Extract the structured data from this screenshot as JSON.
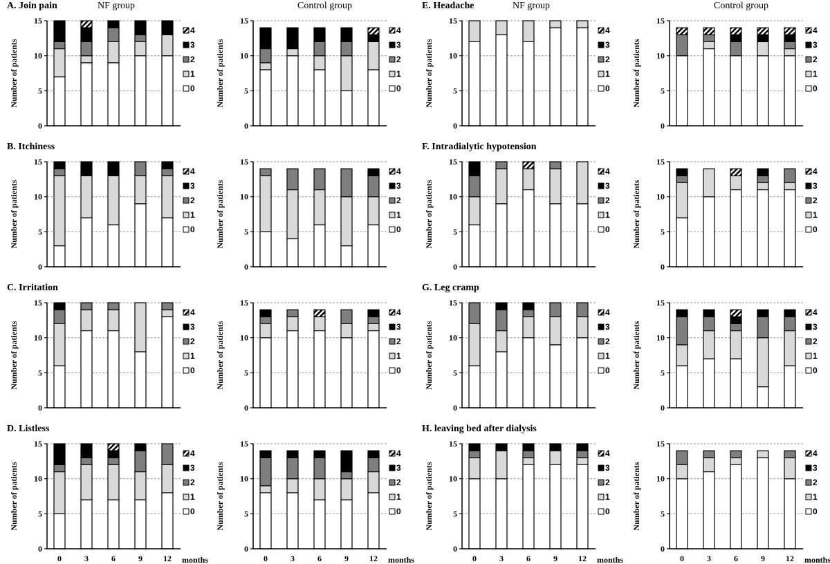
{
  "common": {
    "ylabel": "Number of patients",
    "x_tick_labels": [
      "0",
      "3",
      "6",
      "9",
      "12"
    ],
    "x_unit_label": "months",
    "ylim": [
      0,
      15
    ],
    "y_ticks": [
      "0",
      "5",
      "10",
      "15"
    ],
    "legend": [
      "4",
      "3",
      "2",
      "1",
      "0"
    ],
    "group_labels": {
      "nf": "NF group",
      "control": "Control group"
    },
    "level_colors": {
      "0": "#ffffff",
      "1": "#d9d9d9",
      "2": "#7f7f7f",
      "3": "#000000",
      "4": "hatched"
    },
    "grid": "horizontal dashed"
  },
  "chart_data": [
    {
      "type": "bar",
      "stacked": true,
      "panel": "A",
      "title": "A. Join pain",
      "group": "NF group",
      "categories": [
        "0",
        "3",
        "6",
        "9",
        "12"
      ],
      "series": [
        {
          "name": "0",
          "values": [
            7,
            9,
            9,
            10,
            10
          ]
        },
        {
          "name": "1",
          "values": [
            4,
            1,
            3,
            2,
            3
          ]
        },
        {
          "name": "2",
          "values": [
            1,
            2,
            2,
            1,
            0
          ]
        },
        {
          "name": "3",
          "values": [
            3,
            2,
            1,
            2,
            2
          ]
        },
        {
          "name": "4",
          "values": [
            0,
            1,
            0,
            0,
            0
          ]
        }
      ]
    },
    {
      "type": "bar",
      "stacked": true,
      "panel": "A",
      "title": "",
      "group": "Control group",
      "categories": [
        "0",
        "3",
        "6",
        "9",
        "12"
      ],
      "series": [
        {
          "name": "0",
          "values": [
            8,
            10,
            8,
            5,
            8
          ]
        },
        {
          "name": "1",
          "values": [
            1,
            1,
            2,
            5,
            4
          ]
        },
        {
          "name": "2",
          "values": [
            2,
            0,
            2,
            2,
            0
          ]
        },
        {
          "name": "3",
          "values": [
            3,
            3,
            2,
            2,
            1
          ]
        },
        {
          "name": "4",
          "values": [
            0,
            0,
            0,
            0,
            1
          ]
        }
      ]
    },
    {
      "type": "bar",
      "stacked": true,
      "panel": "E",
      "title": "E. Headache",
      "group": "NF group",
      "categories": [
        "0",
        "3",
        "6",
        "9",
        "12"
      ],
      "series": [
        {
          "name": "0",
          "values": [
            12,
            13,
            12,
            14,
            14
          ]
        },
        {
          "name": "1",
          "values": [
            3,
            2,
            3,
            1,
            1
          ]
        },
        {
          "name": "2",
          "values": [
            0,
            0,
            0,
            0,
            0
          ]
        },
        {
          "name": "3",
          "values": [
            0,
            0,
            0,
            0,
            0
          ]
        },
        {
          "name": "4",
          "values": [
            0,
            0,
            0,
            0,
            0
          ]
        }
      ]
    },
    {
      "type": "bar",
      "stacked": true,
      "panel": "E",
      "title": "",
      "group": "Control group",
      "categories": [
        "0",
        "3",
        "6",
        "9",
        "12"
      ],
      "series": [
        {
          "name": "0",
          "values": [
            10,
            11,
            10,
            10,
            10
          ]
        },
        {
          "name": "1",
          "values": [
            0,
            1,
            0,
            2,
            1
          ]
        },
        {
          "name": "2",
          "values": [
            3,
            1,
            2,
            0,
            1
          ]
        },
        {
          "name": "3",
          "values": [
            0,
            0,
            1,
            1,
            1
          ]
        },
        {
          "name": "4",
          "values": [
            1,
            1,
            1,
            1,
            1
          ]
        }
      ]
    },
    {
      "type": "bar",
      "stacked": true,
      "panel": "B",
      "title": "B. Itchiness",
      "group": "NF group",
      "categories": [
        "0",
        "3",
        "6",
        "9",
        "12"
      ],
      "series": [
        {
          "name": "0",
          "values": [
            3,
            7,
            6,
            9,
            7
          ]
        },
        {
          "name": "1",
          "values": [
            10,
            6,
            7,
            4,
            6
          ]
        },
        {
          "name": "2",
          "values": [
            1,
            0,
            0,
            2,
            1
          ]
        },
        {
          "name": "3",
          "values": [
            1,
            2,
            2,
            0,
            1
          ]
        },
        {
          "name": "4",
          "values": [
            0,
            0,
            0,
            0,
            0
          ]
        }
      ]
    },
    {
      "type": "bar",
      "stacked": true,
      "panel": "B",
      "title": "",
      "group": "Control group",
      "categories": [
        "0",
        "3",
        "6",
        "9",
        "12"
      ],
      "series": [
        {
          "name": "0",
          "values": [
            5,
            4,
            6,
            3,
            6
          ]
        },
        {
          "name": "1",
          "values": [
            8,
            7,
            5,
            7,
            4
          ]
        },
        {
          "name": "2",
          "values": [
            1,
            3,
            3,
            4,
            3
          ]
        },
        {
          "name": "3",
          "values": [
            0,
            0,
            0,
            0,
            1
          ]
        },
        {
          "name": "4",
          "values": [
            0,
            0,
            0,
            0,
            0
          ]
        }
      ]
    },
    {
      "type": "bar",
      "stacked": true,
      "panel": "F",
      "title": "F. Intradialytic hypotension",
      "group": "NF group",
      "categories": [
        "0",
        "3",
        "6",
        "9",
        "12"
      ],
      "series": [
        {
          "name": "0",
          "values": [
            6,
            9,
            11,
            9,
            9
          ]
        },
        {
          "name": "1",
          "values": [
            4,
            5,
            3,
            5,
            6
          ]
        },
        {
          "name": "2",
          "values": [
            3,
            1,
            0,
            1,
            0
          ]
        },
        {
          "name": "3",
          "values": [
            2,
            0,
            0,
            0,
            0
          ]
        },
        {
          "name": "4",
          "values": [
            0,
            0,
            1,
            0,
            0
          ]
        }
      ]
    },
    {
      "type": "bar",
      "stacked": true,
      "panel": "F",
      "title": "",
      "group": "Control group",
      "categories": [
        "0",
        "3",
        "6",
        "9",
        "12"
      ],
      "series": [
        {
          "name": "0",
          "values": [
            7,
            10,
            11,
            11,
            11
          ]
        },
        {
          "name": "1",
          "values": [
            5,
            4,
            2,
            1,
            1
          ]
        },
        {
          "name": "2",
          "values": [
            1,
            0,
            0,
            1,
            2
          ]
        },
        {
          "name": "3",
          "values": [
            1,
            0,
            0,
            1,
            0
          ]
        },
        {
          "name": "4",
          "values": [
            0,
            0,
            1,
            0,
            0
          ]
        }
      ]
    },
    {
      "type": "bar",
      "stacked": true,
      "panel": "C",
      "title": "C. Irritation",
      "group": "NF group",
      "categories": [
        "0",
        "3",
        "6",
        "9",
        "12"
      ],
      "series": [
        {
          "name": "0",
          "values": [
            6,
            11,
            11,
            8,
            13
          ]
        },
        {
          "name": "1",
          "values": [
            6,
            3,
            3,
            7,
            1
          ]
        },
        {
          "name": "2",
          "values": [
            2,
            1,
            1,
            0,
            1
          ]
        },
        {
          "name": "3",
          "values": [
            1,
            0,
            0,
            0,
            0
          ]
        },
        {
          "name": "4",
          "values": [
            0,
            0,
            0,
            0,
            0
          ]
        }
      ]
    },
    {
      "type": "bar",
      "stacked": true,
      "panel": "C",
      "title": "",
      "group": "Control group",
      "categories": [
        "0",
        "3",
        "6",
        "9",
        "12"
      ],
      "series": [
        {
          "name": "0",
          "values": [
            10,
            11,
            11,
            10,
            11
          ]
        },
        {
          "name": "1",
          "values": [
            2,
            2,
            2,
            2,
            1
          ]
        },
        {
          "name": "2",
          "values": [
            1,
            1,
            0,
            2,
            1
          ]
        },
        {
          "name": "3",
          "values": [
            1,
            0,
            0,
            0,
            1
          ]
        },
        {
          "name": "4",
          "values": [
            0,
            0,
            1,
            0,
            0
          ]
        }
      ]
    },
    {
      "type": "bar",
      "stacked": true,
      "panel": "G",
      "title": "G. Leg cramp",
      "group": "NF group",
      "categories": [
        "0",
        "3",
        "6",
        "9",
        "12"
      ],
      "series": [
        {
          "name": "0",
          "values": [
            6,
            8,
            10,
            9,
            10
          ]
        },
        {
          "name": "1",
          "values": [
            6,
            3,
            3,
            4,
            3
          ]
        },
        {
          "name": "2",
          "values": [
            3,
            3,
            1,
            2,
            2
          ]
        },
        {
          "name": "3",
          "values": [
            0,
            1,
            1,
            0,
            0
          ]
        },
        {
          "name": "4",
          "values": [
            0,
            0,
            0,
            0,
            0
          ]
        }
      ]
    },
    {
      "type": "bar",
      "stacked": true,
      "panel": "G",
      "title": "",
      "group": "Control group",
      "categories": [
        "0",
        "3",
        "6",
        "9",
        "12"
      ],
      "series": [
        {
          "name": "0",
          "values": [
            6,
            7,
            7,
            3,
            6
          ]
        },
        {
          "name": "1",
          "values": [
            3,
            4,
            4,
            7,
            5
          ]
        },
        {
          "name": "2",
          "values": [
            4,
            2,
            1,
            3,
            2
          ]
        },
        {
          "name": "3",
          "values": [
            1,
            1,
            1,
            1,
            1
          ]
        },
        {
          "name": "4",
          "values": [
            0,
            0,
            1,
            0,
            0
          ]
        }
      ]
    },
    {
      "type": "bar",
      "stacked": true,
      "panel": "D",
      "title": "D. Listless",
      "group": "NF group",
      "categories": [
        "0",
        "3",
        "6",
        "9",
        "12"
      ],
      "series": [
        {
          "name": "0",
          "values": [
            5,
            7,
            7,
            7,
            8
          ]
        },
        {
          "name": "1",
          "values": [
            6,
            5,
            5,
            4,
            4
          ]
        },
        {
          "name": "2",
          "values": [
            1,
            1,
            1,
            3,
            3
          ]
        },
        {
          "name": "3",
          "values": [
            3,
            2,
            1,
            1,
            0
          ]
        },
        {
          "name": "4",
          "values": [
            0,
            0,
            1,
            0,
            0
          ]
        }
      ]
    },
    {
      "type": "bar",
      "stacked": true,
      "panel": "D",
      "title": "",
      "group": "Control group",
      "categories": [
        "0",
        "3",
        "6",
        "9",
        "12"
      ],
      "series": [
        {
          "name": "0",
          "values": [
            8,
            8,
            7,
            7,
            8
          ]
        },
        {
          "name": "1",
          "values": [
            1,
            2,
            3,
            3,
            3
          ]
        },
        {
          "name": "2",
          "values": [
            4,
            3,
            3,
            1,
            2
          ]
        },
        {
          "name": "3",
          "values": [
            1,
            1,
            1,
            3,
            1
          ]
        },
        {
          "name": "4",
          "values": [
            0,
            0,
            0,
            0,
            0
          ]
        }
      ]
    },
    {
      "type": "bar",
      "stacked": true,
      "panel": "H",
      "title": "H. leaving bed after dialysis",
      "group": "NF group",
      "categories": [
        "0",
        "3",
        "6",
        "9",
        "12"
      ],
      "series": [
        {
          "name": "0",
          "values": [
            10,
            10,
            12,
            12,
            12
          ]
        },
        {
          "name": "1",
          "values": [
            3,
            4,
            1,
            2,
            1
          ]
        },
        {
          "name": "2",
          "values": [
            1,
            0,
            1,
            0,
            1
          ]
        },
        {
          "name": "3",
          "values": [
            1,
            1,
            1,
            1,
            1
          ]
        },
        {
          "name": "4",
          "values": [
            0,
            0,
            0,
            0,
            0
          ]
        }
      ]
    },
    {
      "type": "bar",
      "stacked": true,
      "panel": "H",
      "title": "",
      "group": "Control group",
      "categories": [
        "0",
        "3",
        "6",
        "9",
        "12"
      ],
      "series": [
        {
          "name": "0",
          "values": [
            10,
            11,
            12,
            13,
            10
          ]
        },
        {
          "name": "1",
          "values": [
            2,
            2,
            1,
            1,
            3
          ]
        },
        {
          "name": "2",
          "values": [
            2,
            1,
            1,
            0,
            1
          ]
        },
        {
          "name": "3",
          "values": [
            0,
            0,
            0,
            0,
            0
          ]
        },
        {
          "name": "4",
          "values": [
            0,
            0,
            0,
            0,
            0
          ]
        }
      ]
    }
  ]
}
